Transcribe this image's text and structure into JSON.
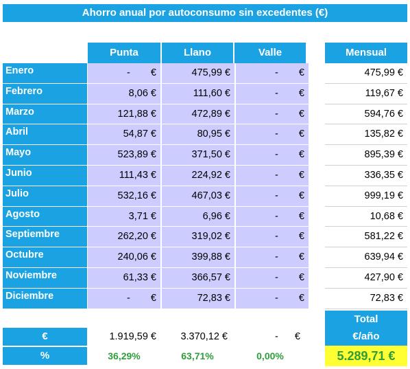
{
  "title": "Ahorro anual por autoconsumo sin excedentes (€)",
  "headers": {
    "punta": "Punta",
    "llano": "Llano",
    "valle": "Valle",
    "mensual": "Mensual"
  },
  "dash": "-",
  "euro_sign": "€",
  "rows": [
    {
      "month": "Enero",
      "punta": null,
      "llano": "475,99 €",
      "mensual": "475,99 €"
    },
    {
      "month": "Febrero",
      "punta": "8,06 €",
      "llano": "111,60 €",
      "mensual": "119,67 €"
    },
    {
      "month": "Marzo",
      "punta": "121,88 €",
      "llano": "472,89 €",
      "mensual": "594,76 €"
    },
    {
      "month": "Abril",
      "punta": "54,87 €",
      "llano": "80,95 €",
      "mensual": "135,82 €"
    },
    {
      "month": "Mayo",
      "punta": "523,89 €",
      "llano": "371,50 €",
      "mensual": "895,39 €"
    },
    {
      "month": "Junio",
      "punta": "111,43 €",
      "llano": "224,92 €",
      "mensual": "336,35 €"
    },
    {
      "month": "Julio",
      "punta": "532,16 €",
      "llano": "467,03 €",
      "mensual": "999,19 €"
    },
    {
      "month": "Agosto",
      "punta": "3,71 €",
      "llano": "6,96 €",
      "mensual": "10,68 €"
    },
    {
      "month": "Septiembre",
      "punta": "262,20 €",
      "llano": "319,02 €",
      "mensual": "581,22 €"
    },
    {
      "month": "Octubre",
      "punta": "240,06 €",
      "llano": "399,88 €",
      "mensual": "639,94 €"
    },
    {
      "month": "Noviembre",
      "punta": "61,33 €",
      "llano": "366,57 €",
      "mensual": "427,90 €"
    },
    {
      "month": "Diciembre",
      "punta": null,
      "llano": "72,83 €",
      "mensual": "72,83 €"
    }
  ],
  "totals": {
    "euro_label": "€",
    "pct_label": "%",
    "punta": "1.919,59 €",
    "llano": "3.370,12 €",
    "punta_pct": "36,29%",
    "llano_pct": "63,71%",
    "valle_pct": "0,00%",
    "total_label_1": "Total",
    "total_label_2": "€/año",
    "total_value": "5.289,71 €"
  }
}
